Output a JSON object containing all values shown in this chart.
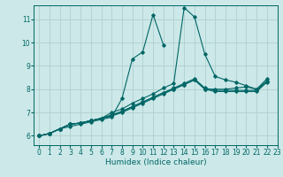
{
  "background_color": "#cce8e8",
  "grid_color": "#b0d0d0",
  "line_color": "#006666",
  "xlabel": "Humidex (Indice chaleur)",
  "xlim": [
    -0.5,
    23
  ],
  "ylim": [
    5.6,
    11.6
  ],
  "xticks": [
    0,
    1,
    2,
    3,
    4,
    5,
    6,
    7,
    8,
    9,
    10,
    11,
    12,
    13,
    14,
    15,
    16,
    17,
    18,
    19,
    20,
    21,
    22,
    23
  ],
  "yticks": [
    6,
    7,
    8,
    9,
    10,
    11
  ],
  "series": [
    [
      6.0,
      6.1,
      6.3,
      6.4,
      6.5,
      6.6,
      6.7,
      6.8,
      7.6,
      9.3,
      9.6,
      11.2,
      9.9,
      null,
      null,
      null,
      null,
      null,
      null,
      null,
      null,
      null,
      null,
      null
    ],
    [
      6.0,
      6.1,
      6.3,
      6.5,
      6.55,
      6.65,
      6.75,
      7.0,
      7.15,
      7.4,
      7.6,
      7.8,
      8.05,
      8.25,
      11.5,
      11.1,
      9.5,
      8.55,
      8.4,
      8.3,
      8.15,
      8.0,
      8.45,
      null
    ],
    [
      6.0,
      6.1,
      6.3,
      6.5,
      6.55,
      6.65,
      6.75,
      6.9,
      7.05,
      7.25,
      7.45,
      7.65,
      7.85,
      8.05,
      8.25,
      8.45,
      8.05,
      7.95,
      7.95,
      7.95,
      7.95,
      7.95,
      8.35,
      null
    ],
    [
      6.0,
      6.1,
      6.3,
      6.5,
      6.55,
      6.65,
      6.75,
      6.85,
      7.0,
      7.2,
      7.4,
      7.6,
      7.8,
      8.0,
      8.2,
      8.4,
      8.0,
      7.9,
      7.9,
      7.9,
      7.9,
      7.9,
      8.3,
      null
    ],
    [
      6.0,
      6.1,
      6.3,
      6.5,
      6.55,
      6.65,
      6.75,
      6.85,
      7.05,
      7.25,
      7.45,
      7.65,
      7.85,
      8.0,
      8.2,
      8.4,
      8.0,
      8.0,
      8.0,
      8.05,
      8.1,
      8.0,
      8.35,
      null
    ]
  ]
}
